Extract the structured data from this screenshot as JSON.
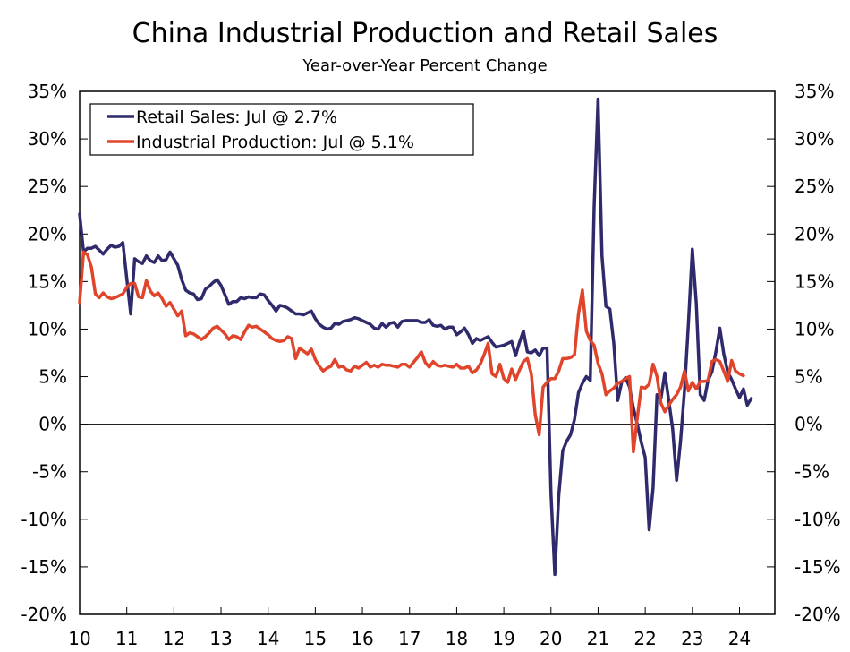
{
  "chart_data": {
    "type": "line",
    "title": "China Industrial Production and Retail Sales",
    "subtitle": "Year-over-Year Percent Change",
    "xlabel": "",
    "ylabel": "",
    "xlim": [
      2010.0,
      2024.75
    ],
    "ylim": [
      -20,
      35
    ],
    "y_ticks": [
      35,
      30,
      25,
      20,
      15,
      10,
      5,
      0,
      -5,
      -10,
      -15,
      -20
    ],
    "y_tick_labels": [
      "35%",
      "30%",
      "25%",
      "20%",
      "15%",
      "10%",
      "5%",
      "0%",
      "-5%",
      "-10%",
      "-15%",
      "-20%"
    ],
    "x_tick_labels": [
      "10",
      "11",
      "12",
      "13",
      "14",
      "15",
      "16",
      "17",
      "18",
      "19",
      "20",
      "21",
      "22",
      "23",
      "24"
    ],
    "x_ticks": [
      2010,
      2011,
      2012,
      2013,
      2014,
      2015,
      2016,
      2017,
      2018,
      2019,
      2020,
      2021,
      2022,
      2023,
      2024
    ],
    "legend_position": "top-left",
    "grid": false,
    "colors": {
      "retail": "#2E2A6B",
      "industrial": "#E0442B",
      "axis": "#000000"
    },
    "series": [
      {
        "name": "Retail Sales: Jul @ 2.7%",
        "color": "#2E2A6B",
        "start": 2010.0,
        "step": 0.08333,
        "values": [
          22.1,
          18.1,
          18.5,
          18.5,
          18.7,
          18.3,
          17.9,
          18.4,
          18.8,
          18.6,
          18.7,
          19.1,
          15.3,
          11.6,
          17.4,
          17.1,
          16.9,
          17.7,
          17.2,
          17.0,
          17.7,
          17.2,
          17.3,
          18.1,
          17.4,
          16.7,
          15.2,
          14.1,
          13.8,
          13.7,
          13.1,
          13.2,
          14.2,
          14.5,
          14.9,
          15.2,
          14.6,
          13.6,
          12.6,
          12.9,
          12.9,
          13.3,
          13.2,
          13.4,
          13.3,
          13.3,
          13.7,
          13.6,
          13.0,
          12.5,
          11.9,
          12.5,
          12.4,
          12.2,
          11.9,
          11.6,
          11.6,
          11.5,
          11.7,
          11.9,
          11.1,
          10.5,
          10.2,
          10.0,
          10.1,
          10.6,
          10.5,
          10.8,
          10.9,
          11.0,
          11.2,
          11.1,
          10.9,
          10.7,
          10.5,
          10.1,
          10.0,
          10.6,
          10.2,
          10.6,
          10.7,
          10.2,
          10.8,
          10.9,
          10.9,
          10.9,
          10.9,
          10.7,
          10.7,
          11.0,
          10.4,
          10.3,
          10.4,
          10.0,
          10.2,
          10.2,
          9.4,
          9.7,
          10.1,
          9.4,
          8.5,
          9.0,
          8.8,
          9.0,
          9.2,
          8.6,
          8.1,
          8.2,
          8.3,
          8.5,
          8.7,
          7.2,
          8.6,
          9.8,
          7.6,
          7.5,
          7.8,
          7.2,
          8.0,
          8.0,
          -7.3,
          -15.8,
          -7.5,
          -2.8,
          -1.8,
          -1.1,
          0.5,
          3.3,
          4.3,
          5.0,
          4.6,
          22.8,
          34.2,
          17.7,
          12.4,
          12.1,
          8.5,
          2.5,
          4.4,
          4.9,
          3.9,
          1.7,
          0.0,
          -1.9,
          -3.5,
          -11.1,
          -6.7,
          3.1,
          2.7,
          5.4,
          2.5,
          -0.5,
          -5.9,
          -1.8,
          3.5,
          10.6,
          18.4,
          12.7,
          3.1,
          2.5,
          4.6,
          5.5,
          7.6,
          10.1,
          7.4,
          5.5,
          4.7,
          3.7,
          2.8,
          3.7,
          2.0,
          2.7
        ]
      },
      {
        "name": "Industrial Production: Jul @ 5.1%",
        "color": "#E0442B",
        "start": 2010.0,
        "step": 0.08333,
        "values": [
          12.8,
          18.1,
          17.8,
          16.5,
          13.7,
          13.3,
          13.8,
          13.4,
          13.2,
          13.3,
          13.5,
          13.7,
          14.4,
          14.8,
          14.8,
          13.4,
          13.3,
          15.1,
          14.0,
          13.5,
          13.8,
          13.2,
          12.4,
          12.8,
          12.1,
          11.4,
          11.9,
          9.3,
          9.6,
          9.5,
          9.2,
          8.9,
          9.2,
          9.6,
          10.1,
          10.3,
          9.9,
          9.5,
          8.9,
          9.3,
          9.2,
          8.9,
          9.7,
          10.4,
          10.2,
          10.3,
          10.0,
          9.7,
          9.4,
          9.0,
          8.8,
          8.7,
          8.8,
          9.2,
          9.0,
          6.9,
          8.0,
          7.7,
          7.4,
          7.9,
          6.8,
          6.1,
          5.6,
          5.9,
          6.1,
          6.8,
          6.0,
          6.1,
          5.7,
          5.6,
          6.1,
          5.9,
          6.2,
          6.5,
          6.0,
          6.2,
          6.0,
          6.3,
          6.2,
          6.2,
          6.1,
          6.0,
          6.3,
          6.3,
          6.0,
          6.5,
          7.0,
          7.6,
          6.5,
          6.0,
          6.6,
          6.2,
          6.1,
          6.2,
          6.1,
          6.0,
          6.3,
          5.9,
          5.9,
          6.1,
          5.4,
          5.7,
          6.3,
          7.3,
          8.5,
          5.3,
          5.0,
          6.3,
          4.8,
          4.4,
          5.8,
          4.7,
          5.7,
          6.6,
          6.9,
          5.3,
          1.0,
          -1.1,
          3.9,
          4.4,
          4.8,
          4.8,
          5.6,
          6.9,
          6.9,
          7.0,
          7.3,
          11.6,
          14.1,
          9.8,
          8.8,
          8.3,
          6.4,
          5.3,
          3.1,
          3.5,
          3.8,
          4.3,
          4.5,
          4.8,
          5.0,
          -2.9,
          0.7,
          3.9,
          3.8,
          4.2,
          6.3,
          5.0,
          2.2,
          1.3,
          2.0,
          2.6,
          3.1,
          3.9,
          5.6,
          3.5,
          4.4,
          3.7,
          4.5,
          4.5,
          4.6,
          6.6,
          6.8,
          6.6,
          5.6,
          4.5,
          6.7,
          5.6,
          5.3,
          5.1
        ]
      }
    ]
  }
}
